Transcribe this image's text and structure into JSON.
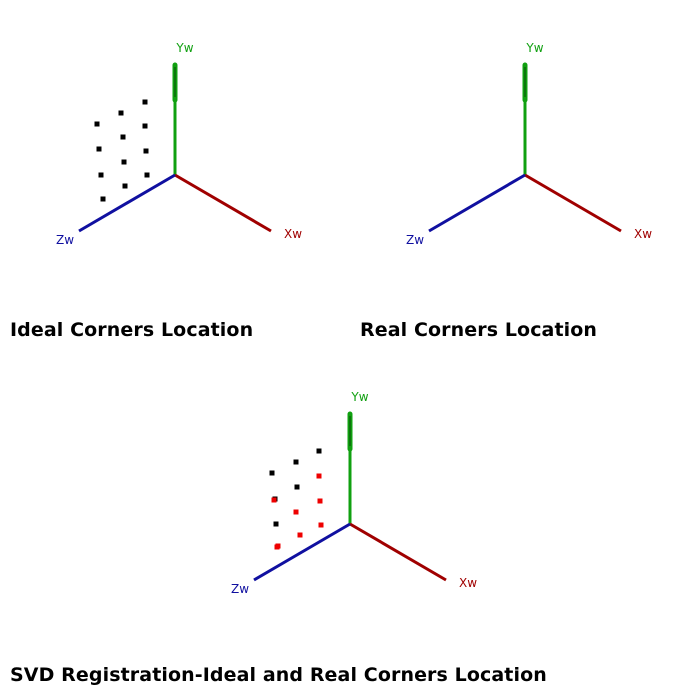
{
  "colors": {
    "x_axis": "#a00000",
    "y_axis": "#10a010",
    "z_axis": "#1010a0",
    "ideal_corner": "#000000",
    "real_corner": "#ee0000",
    "background": "#ffffff"
  },
  "axis_labels": {
    "x": "Xw",
    "y": "Yw",
    "z": "Zw"
  },
  "panels": [
    {
      "id": "ideal",
      "caption": "Ideal Corners Location",
      "shows_ideal_corners": true,
      "shows_real_corners": false
    },
    {
      "id": "real",
      "caption": "Real Corners Location",
      "shows_ideal_corners": false,
      "shows_real_corners": false
    },
    {
      "id": "svd",
      "caption": "SVD Registration-Ideal and Real Corners Location",
      "shows_ideal_corners": true,
      "shows_real_corners": true
    }
  ]
}
